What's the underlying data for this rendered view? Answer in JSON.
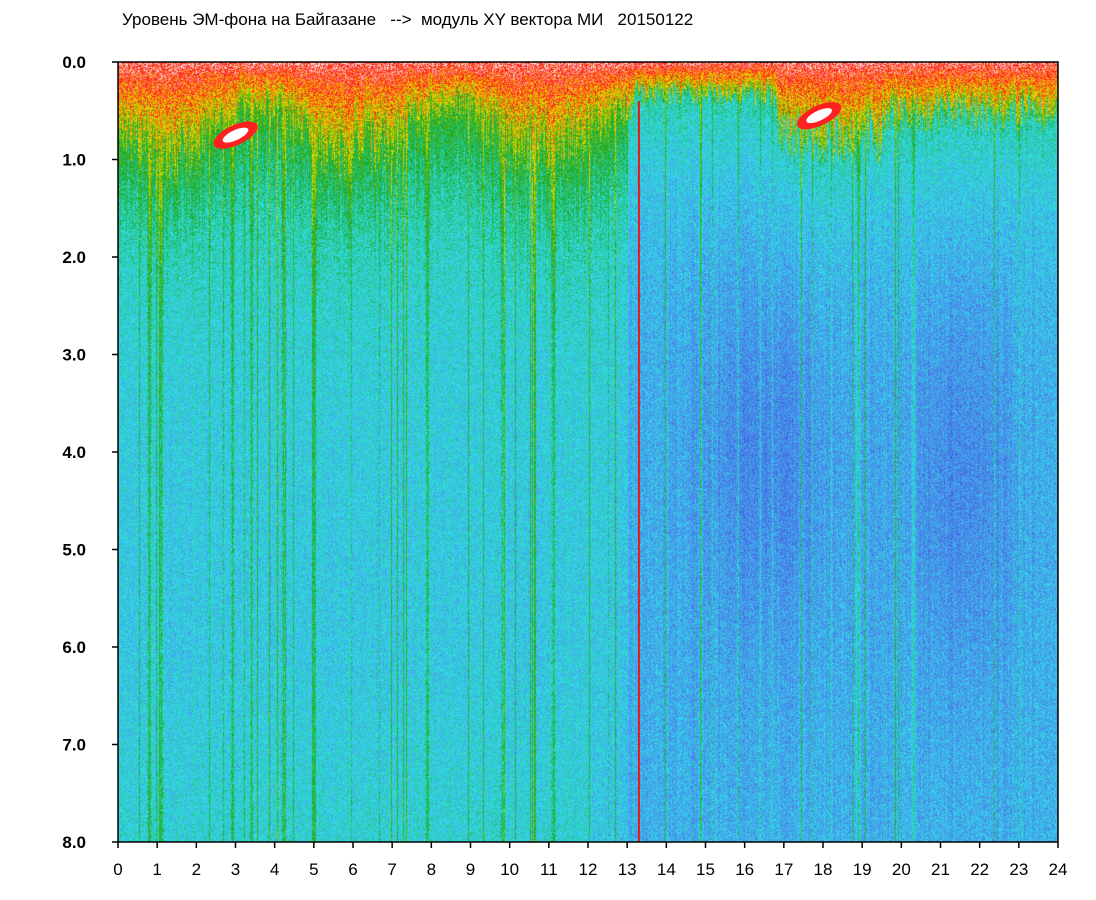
{
  "chart_data": {
    "type": "heatmap",
    "title": "Уровень ЭМ-фона на Байгазане   -->  модуль XY вектора МИ   20150122",
    "xlim": [
      0,
      24
    ],
    "ylim": [
      0.0,
      8.0
    ],
    "y_inverted": true,
    "grid": false,
    "x_ticks": [
      "0",
      "1",
      "2",
      "3",
      "4",
      "5",
      "6",
      "7",
      "8",
      "9",
      "10",
      "11",
      "12",
      "13",
      "14",
      "15",
      "16",
      "17",
      "18",
      "19",
      "20",
      "21",
      "22",
      "23",
      "24"
    ],
    "y_ticks": [
      "0.0",
      "1.0",
      "2.0",
      "3.0",
      "4.0",
      "5.0",
      "6.0",
      "7.0",
      "8.0"
    ],
    "colormap": [
      "#1f2fd6",
      "#4d7be8",
      "#32e0e8",
      "#1aa51a",
      "#f0e000",
      "#ff1010",
      "#ffffff"
    ],
    "colormap_low_to_high": [
      "blue",
      "light-blue",
      "cyan",
      "green",
      "yellow",
      "red",
      "white"
    ],
    "annotations": {
      "red_vertical_line_x": 13.3,
      "hot_spots": [
        {
          "x": 3.0,
          "y": 0.75
        },
        {
          "x": 17.9,
          "y": 0.55
        }
      ]
    }
  }
}
